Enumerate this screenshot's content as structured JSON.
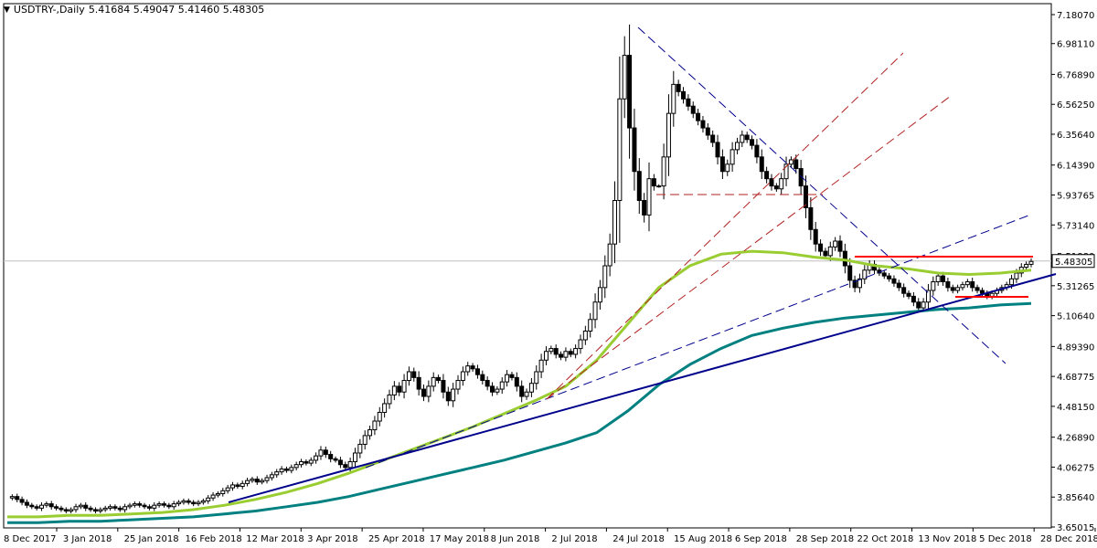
{
  "header": {
    "symbol": "USDTRY-,Daily",
    "ohlc": "5.41684 5.49047 5.41460 5.48305",
    "dropdown_icon": "triangle-down-icon"
  },
  "colors": {
    "background": "#ffffff",
    "frame": "#000000",
    "candle": "#000000",
    "ma_short": "#9acd32",
    "ma_long": "#008080",
    "trend_main": "#00008b",
    "trend_dash": "#00008b",
    "fan_dash": "#b22222",
    "resistance": "#ff0000",
    "current_price_line": "#c0c0c0"
  },
  "chart_data": {
    "type": "candlestick",
    "title": "USDTRY-,Daily",
    "x_ticks": [
      "8 Dec 2017",
      "3 Jan 2018",
      "25 Jan 2018",
      "16 Feb 2018",
      "12 Mar 2018",
      "3 Apr 2018",
      "25 Apr 2018",
      "17 May 2018",
      "8 Jun 2018",
      "2 Jul 2018",
      "24 Jul 2018",
      "15 Aug 2018",
      "6 Sep 2018",
      "28 Sep 2018",
      "22 Oct 2018",
      "13 Nov 2018",
      "5 Dec 2018",
      "28 Dec 2018"
    ],
    "y_ticks": [
      "7.18070",
      "6.98110",
      "6.76890",
      "6.56250",
      "6.35640",
      "6.14390",
      "5.93765",
      "5.73140",
      "5.51880",
      "5.31265",
      "5.10640",
      "4.89390",
      "4.68775",
      "4.48150",
      "4.26890",
      "4.06275",
      "3.85640",
      "3.65015"
    ],
    "ylim": [
      3.65015,
      7.1807
    ],
    "current_price": "5.48305",
    "close_series": [
      3.85,
      3.86,
      3.84,
      3.82,
      3.8,
      3.79,
      3.78,
      3.8,
      3.81,
      3.79,
      3.78,
      3.77,
      3.76,
      3.77,
      3.79,
      3.8,
      3.78,
      3.77,
      3.76,
      3.77,
      3.78,
      3.79,
      3.78,
      3.77,
      3.79,
      3.8,
      3.81,
      3.8,
      3.79,
      3.78,
      3.8,
      3.81,
      3.8,
      3.79,
      3.81,
      3.82,
      3.83,
      3.82,
      3.81,
      3.82,
      3.83,
      3.85,
      3.87,
      3.88,
      3.9,
      3.92,
      3.94,
      3.93,
      3.95,
      3.97,
      3.98,
      3.96,
      3.97,
      3.99,
      4.01,
      4.03,
      4.05,
      4.04,
      4.06,
      4.08,
      4.1,
      4.09,
      4.11,
      4.14,
      4.18,
      4.15,
      4.12,
      4.11,
      4.08,
      4.06,
      4.1,
      4.16,
      4.22,
      4.28,
      4.32,
      4.38,
      4.44,
      4.5,
      4.56,
      4.62,
      4.58,
      4.66,
      4.72,
      4.68,
      4.6,
      4.55,
      4.62,
      4.68,
      4.66,
      4.58,
      4.52,
      4.6,
      4.66,
      4.72,
      4.76,
      4.74,
      4.7,
      4.66,
      4.62,
      4.58,
      4.6,
      4.65,
      4.7,
      4.68,
      4.62,
      4.55,
      4.58,
      4.64,
      4.72,
      4.8,
      4.86,
      4.88,
      4.84,
      4.82,
      4.86,
      4.84,
      4.88,
      4.94,
      5.0,
      5.08,
      5.2,
      5.3,
      5.45,
      5.6,
      5.9,
      6.6,
      6.9,
      6.4,
      6.1,
      5.9,
      5.8,
      6.05,
      6.0,
      6.0,
      6.2,
      6.5,
      6.7,
      6.65,
      6.6,
      6.55,
      6.5,
      6.45,
      6.4,
      6.35,
      6.3,
      6.2,
      6.1,
      6.15,
      6.25,
      6.3,
      6.35,
      6.32,
      6.28,
      6.2,
      6.1,
      6.05,
      6.0,
      5.98,
      6.05,
      6.15,
      6.18,
      6.12,
      6.0,
      5.85,
      5.7,
      5.6,
      5.55,
      5.52,
      5.58,
      5.62,
      5.55,
      5.45,
      5.35,
      5.3,
      5.36,
      5.42,
      5.46,
      5.42,
      5.4,
      5.38,
      5.36,
      5.33,
      5.3,
      5.26,
      5.24,
      5.2,
      5.16,
      5.2,
      5.28,
      5.34,
      5.38,
      5.34,
      5.3,
      5.28,
      5.3,
      5.32,
      5.34,
      5.3,
      5.28,
      5.26,
      5.24,
      5.26,
      5.28,
      5.3,
      5.32,
      5.36,
      5.4,
      5.44,
      5.46,
      5.48
    ],
    "series": [
      {
        "values": [
          3.72,
          3.72,
          3.73,
          3.73,
          3.74,
          3.75,
          3.77,
          3.8,
          3.84,
          3.89,
          3.95,
          4.02,
          4.1,
          4.18,
          4.26,
          4.34,
          4.43,
          4.52,
          4.62,
          4.8,
          5.05,
          5.3,
          5.45,
          5.53,
          5.55,
          5.54,
          5.51,
          5.49,
          5.45,
          5.43,
          5.4,
          5.39,
          5.4,
          5.42
        ]
      },
      {
        "values": [
          3.68,
          3.68,
          3.69,
          3.69,
          3.7,
          3.71,
          3.72,
          3.74,
          3.76,
          3.79,
          3.82,
          3.86,
          3.91,
          3.96,
          4.01,
          4.06,
          4.11,
          4.17,
          4.23,
          4.3,
          4.45,
          4.63,
          4.77,
          4.88,
          4.97,
          5.02,
          5.06,
          5.09,
          5.11,
          5.13,
          5.15,
          5.16,
          5.18,
          5.19
        ]
      }
    ],
    "grid": false,
    "legend": "none"
  }
}
